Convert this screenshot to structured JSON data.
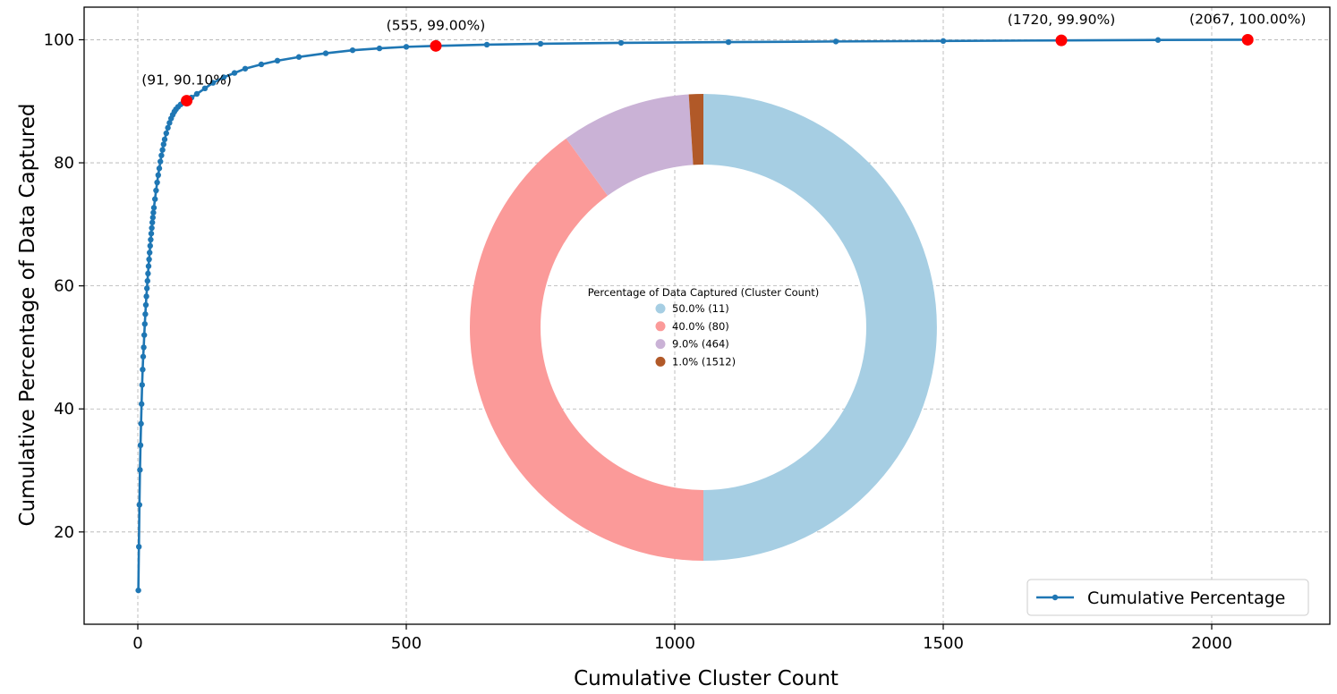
{
  "chart_data": [
    {
      "type": "line",
      "xlabel": "Cumulative Cluster Count",
      "ylabel": "Cumulative Percentage of Data Captured",
      "xlim": [
        -100,
        2220
      ],
      "ylim": [
        5,
        105.3
      ],
      "x_ticks": [
        0,
        500,
        1000,
        1500,
        2000
      ],
      "y_ticks": [
        20,
        40,
        60,
        80,
        100
      ],
      "grid": true,
      "legend_position": "lower-right",
      "series": [
        {
          "name": "Cumulative Percentage",
          "color": "#1f77b4",
          "marker": "circle",
          "points": [
            [
              1,
              10.5
            ],
            [
              2,
              17.6
            ],
            [
              3,
              24.4
            ],
            [
              4,
              30.1
            ],
            [
              5,
              34.1
            ],
            [
              6,
              37.6
            ],
            [
              7,
              40.8
            ],
            [
              8,
              43.9
            ],
            [
              9,
              46.4
            ],
            [
              10,
              48.5
            ],
            [
              11,
              50.0
            ],
            [
              12,
              52.0
            ],
            [
              13,
              53.8
            ],
            [
              14,
              55.4
            ],
            [
              15,
              56.9
            ],
            [
              16,
              58.3
            ],
            [
              17,
              59.6
            ],
            [
              18,
              60.8
            ],
            [
              19,
              62.0
            ],
            [
              20,
              63.2
            ],
            [
              21,
              64.3
            ],
            [
              22,
              65.4
            ],
            [
              23,
              66.5
            ],
            [
              24,
              67.5
            ],
            [
              25,
              68.5
            ],
            [
              26,
              69.4
            ],
            [
              27,
              70.3
            ],
            [
              28,
              71.1
            ],
            [
              29,
              71.9
            ],
            [
              30,
              72.7
            ],
            [
              32,
              74.1
            ],
            [
              34,
              75.5
            ],
            [
              36,
              76.8
            ],
            [
              38,
              78.0
            ],
            [
              40,
              79.1
            ],
            [
              42,
              80.2
            ],
            [
              44,
              81.2
            ],
            [
              46,
              82.1
            ],
            [
              48,
              83.0
            ],
            [
              50,
              83.8
            ],
            [
              53,
              84.8
            ],
            [
              56,
              85.7
            ],
            [
              59,
              86.5
            ],
            [
              62,
              87.2
            ],
            [
              65,
              87.8
            ],
            [
              68,
              88.3
            ],
            [
              71,
              88.7
            ],
            [
              75,
              89.1
            ],
            [
              80,
              89.5
            ],
            [
              85,
              89.8
            ],
            [
              91,
              90.1
            ],
            [
              100,
              90.6
            ],
            [
              110,
              91.2
            ],
            [
              125,
              92.1
            ],
            [
              140,
              93.0
            ],
            [
              160,
              93.9
            ],
            [
              180,
              94.6
            ],
            [
              200,
              95.3
            ],
            [
              230,
              96.0
            ],
            [
              260,
              96.6
            ],
            [
              300,
              97.2
            ],
            [
              350,
              97.8
            ],
            [
              400,
              98.3
            ],
            [
              450,
              98.6
            ],
            [
              500,
              98.85
            ],
            [
              555,
              99.0
            ],
            [
              650,
              99.2
            ],
            [
              750,
              99.35
            ],
            [
              900,
              99.5
            ],
            [
              1100,
              99.62
            ],
            [
              1300,
              99.72
            ],
            [
              1500,
              99.8
            ],
            [
              1720,
              99.9
            ],
            [
              1900,
              99.96
            ],
            [
              2067,
              100.0
            ]
          ]
        }
      ],
      "highlights": [
        {
          "x": 91,
          "y": 90.1,
          "label": "(91, 90.10%)"
        },
        {
          "x": 555,
          "y": 99.0,
          "label": "(555, 99.00%)"
        },
        {
          "x": 1720,
          "y": 99.9,
          "label": "(1720, 99.90%)"
        },
        {
          "x": 2067,
          "y": 100.0,
          "label": "(2067, 100.00%)"
        }
      ],
      "highlight_color": "#ff0000"
    },
    {
      "type": "pie",
      "style": "donut",
      "legend_title": "Percentage of Data Captured (Cluster Count)",
      "slices": [
        {
          "label": "50.0% (11)",
          "value": 50.0,
          "color": "#a6cee3"
        },
        {
          "label": "40.0% (80)",
          "value": 40.0,
          "color": "#fb9a99"
        },
        {
          "label": "9.0% (464)",
          "value": 9.0,
          "color": "#cab2d6"
        },
        {
          "label": "1.0% (1512)",
          "value": 1.0,
          "color": "#b15928"
        }
      ]
    }
  ]
}
